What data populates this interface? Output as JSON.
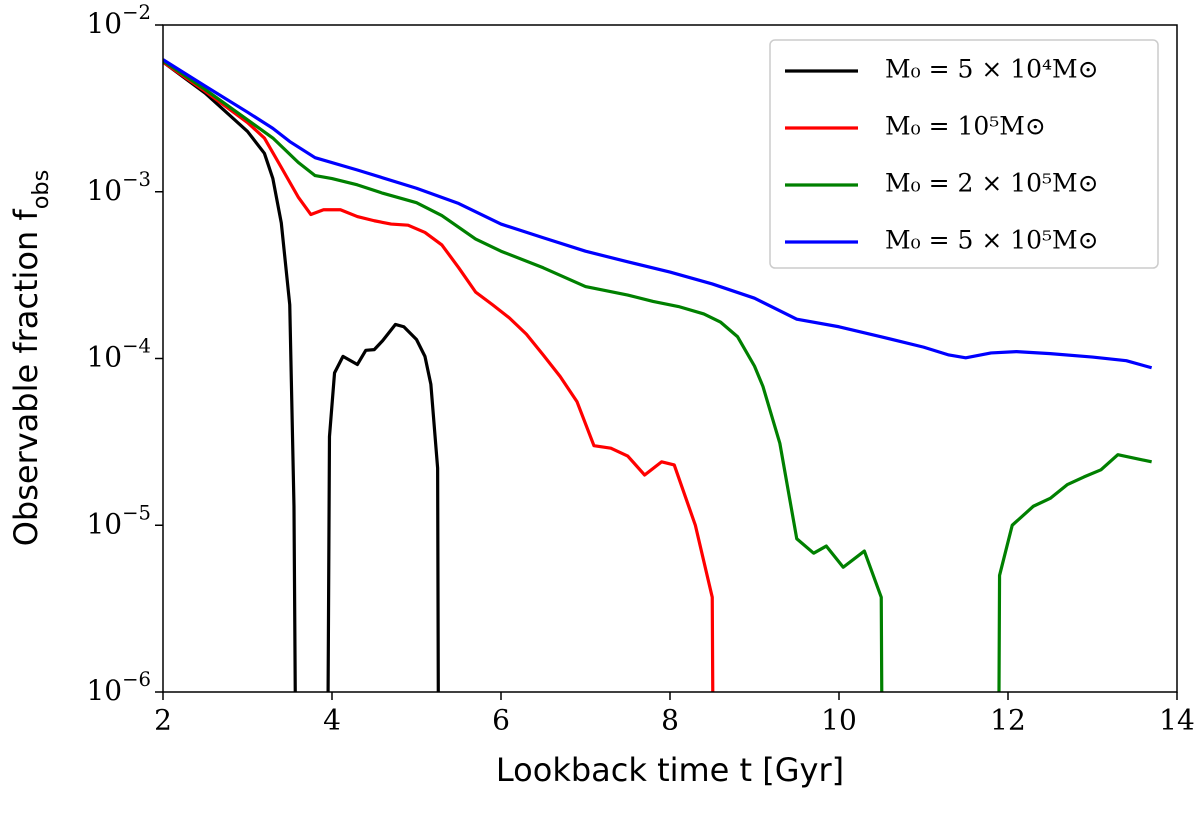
{
  "chart_data": {
    "type": "line",
    "log_y": true,
    "legend": "upper right",
    "xlabel": "Lookback time t [Gyr]",
    "ylabel": "Observable fraction fobs",
    "xlim": [
      2,
      14
    ],
    "xticks": [
      2,
      4,
      6,
      8,
      10,
      12,
      14
    ],
    "ylim": [
      1e-06,
      0.01
    ],
    "yticks": [
      {
        "value": 1e-06,
        "label": "10−6"
      },
      {
        "value": 1e-05,
        "label": "10−5"
      },
      {
        "value": 0.0001,
        "label": "10−4"
      },
      {
        "value": 0.001,
        "label": "10−3"
      },
      {
        "value": 0.01,
        "label": "10−2"
      }
    ],
    "series": [
      {
        "name": "M₀ = 5 × 10⁴M⊙",
        "color": "#000000",
        "x": [
          2.0,
          2.5,
          3.0,
          3.2,
          3.3,
          3.4,
          3.5,
          3.55,
          3.57,
          null,
          3.95,
          3.97,
          4.03,
          4.13,
          4.3,
          4.4,
          4.5,
          4.6,
          4.75,
          4.85,
          5.0,
          5.1,
          5.17,
          5.25,
          5.26
        ],
        "values": [
          0.006,
          0.0039,
          0.0023,
          0.0017,
          0.0012,
          0.00065,
          0.00021,
          1.3e-05,
          0,
          null,
          0,
          3.4e-05,
          8.2e-05,
          0.000103,
          9.2e-05,
          0.000112,
          0.000113,
          0.000128,
          0.00016,
          0.000155,
          0.00013,
          0.000103,
          7e-05,
          2.2e-05,
          0
        ]
      },
      {
        "name": "M₀ = 10⁵M⊙",
        "color": "#ff0000",
        "x": [
          2.0,
          2.5,
          3.0,
          3.2,
          3.4,
          3.6,
          3.75,
          3.9,
          4.1,
          4.3,
          4.5,
          4.7,
          4.9,
          5.1,
          5.3,
          5.5,
          5.7,
          5.9,
          6.1,
          6.3,
          6.5,
          6.7,
          6.9,
          7.1,
          7.3,
          7.5,
          7.7,
          7.9,
          8.05,
          8.3,
          8.5,
          8.51
        ],
        "values": [
          0.006,
          0.004,
          0.0026,
          0.0021,
          0.0014,
          0.00093,
          0.00073,
          0.00078,
          0.00078,
          0.00071,
          0.00067,
          0.00064,
          0.00063,
          0.00057,
          0.00048,
          0.00035,
          0.00025,
          0.00021,
          0.000175,
          0.00014,
          0.000105,
          7.8e-05,
          5.5e-05,
          3e-05,
          2.9e-05,
          2.6e-05,
          2e-05,
          2.4e-05,
          2.3e-05,
          1e-05,
          3.7e-06,
          0
        ]
      },
      {
        "name": "M₀ = 2 × 10⁵M⊙",
        "color": "#008000",
        "x": [
          2.0,
          2.5,
          3.0,
          3.3,
          3.6,
          3.8,
          4.0,
          4.3,
          4.6,
          5.0,
          5.3,
          5.7,
          6.0,
          6.5,
          7.0,
          7.5,
          7.8,
          8.1,
          8.4,
          8.6,
          8.8,
          9.0,
          9.1,
          9.3,
          9.5,
          9.7,
          9.85,
          10.05,
          10.3,
          10.5,
          10.51,
          null,
          11.89,
          11.9,
          12.05,
          12.3,
          12.5,
          12.7,
          12.9,
          13.1,
          13.3,
          13.7
        ],
        "values": [
          0.0061,
          0.0041,
          0.0027,
          0.0021,
          0.0015,
          0.00125,
          0.0012,
          0.0011,
          0.00098,
          0.00086,
          0.00072,
          0.00052,
          0.00044,
          0.00035,
          0.00027,
          0.00024,
          0.00022,
          0.000205,
          0.000185,
          0.000165,
          0.000135,
          9e-05,
          6.8e-05,
          3.1e-05,
          8.3e-06,
          6.8e-06,
          7.5e-06,
          5.6e-06,
          7e-06,
          3.7e-06,
          0,
          null,
          0,
          5e-06,
          1e-05,
          1.3e-05,
          1.45e-05,
          1.75e-05,
          1.95e-05,
          2.15e-05,
          2.65e-05,
          2.4e-05
        ]
      },
      {
        "name": "M₀ = 5 × 10⁵M⊙",
        "color": "#0000ff",
        "x": [
          2.0,
          2.5,
          3.0,
          3.3,
          3.5,
          3.8,
          4.3,
          5.0,
          5.5,
          6.0,
          6.5,
          7.0,
          7.5,
          8.0,
          8.5,
          9.0,
          9.5,
          10.0,
          10.5,
          11.0,
          11.3,
          11.5,
          11.8,
          12.1,
          12.5,
          13.0,
          13.4,
          13.7
        ],
        "values": [
          0.0062,
          0.0043,
          0.003,
          0.0024,
          0.002,
          0.0016,
          0.00135,
          0.00105,
          0.00085,
          0.00064,
          0.00053,
          0.00044,
          0.00038,
          0.00033,
          0.00028,
          0.00023,
          0.000172,
          0.000155,
          0.000135,
          0.000117,
          0.000105,
          0.000101,
          0.000108,
          0.00011,
          0.000107,
          0.000102,
          9.7e-05,
          8.8e-05
        ]
      }
    ]
  }
}
